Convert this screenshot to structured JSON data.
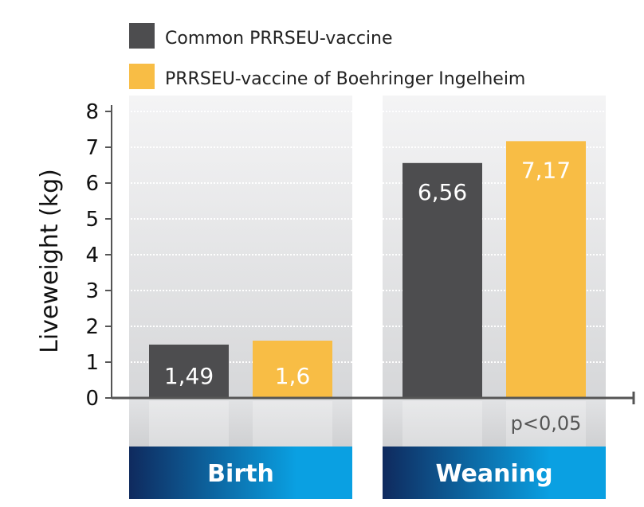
{
  "chart_data": {
    "type": "bar",
    "categories": [
      "Birth",
      "Weaning"
    ],
    "series": [
      {
        "name": "Common PRRSEU-vaccine",
        "values": [
          1.49,
          6.56
        ],
        "labels": [
          "1,49",
          "6,56"
        ],
        "color": "#4d4d4f"
      },
      {
        "name": "PRRSEU-vaccine of Boehringer Ingelheim",
        "values": [
          1.6,
          7.17
        ],
        "labels": [
          "1,6",
          "7,17"
        ],
        "color": "#f8bd45"
      }
    ],
    "ylabel": "Liveweight (kg)",
    "ylim": [
      0,
      8
    ],
    "yticks": [
      "0",
      "1",
      "2",
      "3",
      "4",
      "5",
      "6",
      "7",
      "8"
    ],
    "legend_position": "top-left",
    "grid": true,
    "annotation": "p<0,05",
    "category_band_colors": [
      "#0f2a5e",
      "#0aa0e2"
    ]
  }
}
